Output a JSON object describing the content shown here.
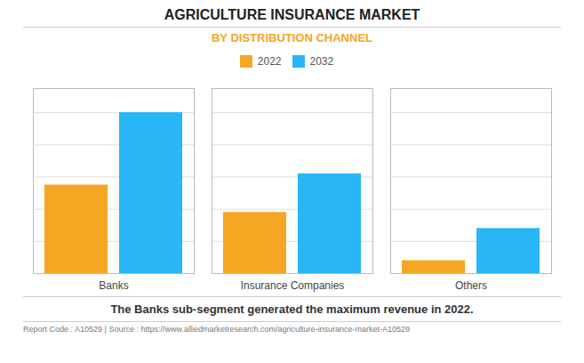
{
  "chart_data": {
    "type": "bar",
    "title": "AGRICULTURE INSURANCE MARKET",
    "subtitle": "BY DISTRIBUTION CHANNEL",
    "annotations": [
      "The Banks sub-segment generated the maximum revenue in 2022.",
      "Report Code : A10529  |  Source : https://www.alliedmarketresearch.com/agriculture-insurance-market-A10529"
    ],
    "categories": [
      "Banks",
      "Insurance Companies",
      "Others"
    ],
    "series": [
      {
        "name": "2022",
        "color": "#F5A623",
        "values": [
          55,
          38,
          8
        ]
      },
      {
        "name": "2032",
        "color": "#29B6F6",
        "values": [
          100,
          62,
          28
        ]
      }
    ],
    "ylim": [
      0,
      115
    ],
    "yticks": [
      0,
      20,
      40,
      60,
      80,
      100
    ],
    "grid": true,
    "legend": "top",
    "tick_labels": "x"
  }
}
